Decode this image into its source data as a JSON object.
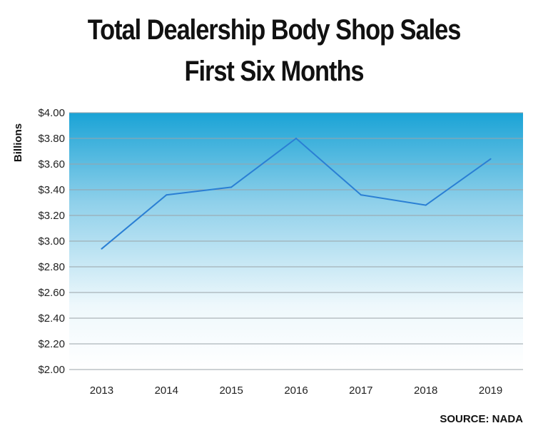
{
  "chart_data": {
    "type": "line",
    "title": "Total Dealership Body Shop Sales",
    "subtitle": "First Six Months",
    "ylabel": "Billions",
    "xlabel": "",
    "categories": [
      "2013",
      "2014",
      "2015",
      "2016",
      "2017",
      "2018",
      "2019"
    ],
    "values": [
      2.94,
      3.36,
      3.42,
      3.8,
      3.36,
      3.28,
      3.64
    ],
    "ylim": [
      2.0,
      4.0
    ],
    "yticks": [
      "$2.00",
      "$2.20",
      "$2.40",
      "$2.60",
      "$2.80",
      "$3.00",
      "$3.20",
      "$3.40",
      "$3.60",
      "$3.80",
      "$4.00"
    ],
    "grid": true,
    "line_color": "#2a7fd4",
    "background_gradient": [
      "#1aa3d6",
      "#ffffff"
    ],
    "source": "SOURCE: NADA"
  }
}
